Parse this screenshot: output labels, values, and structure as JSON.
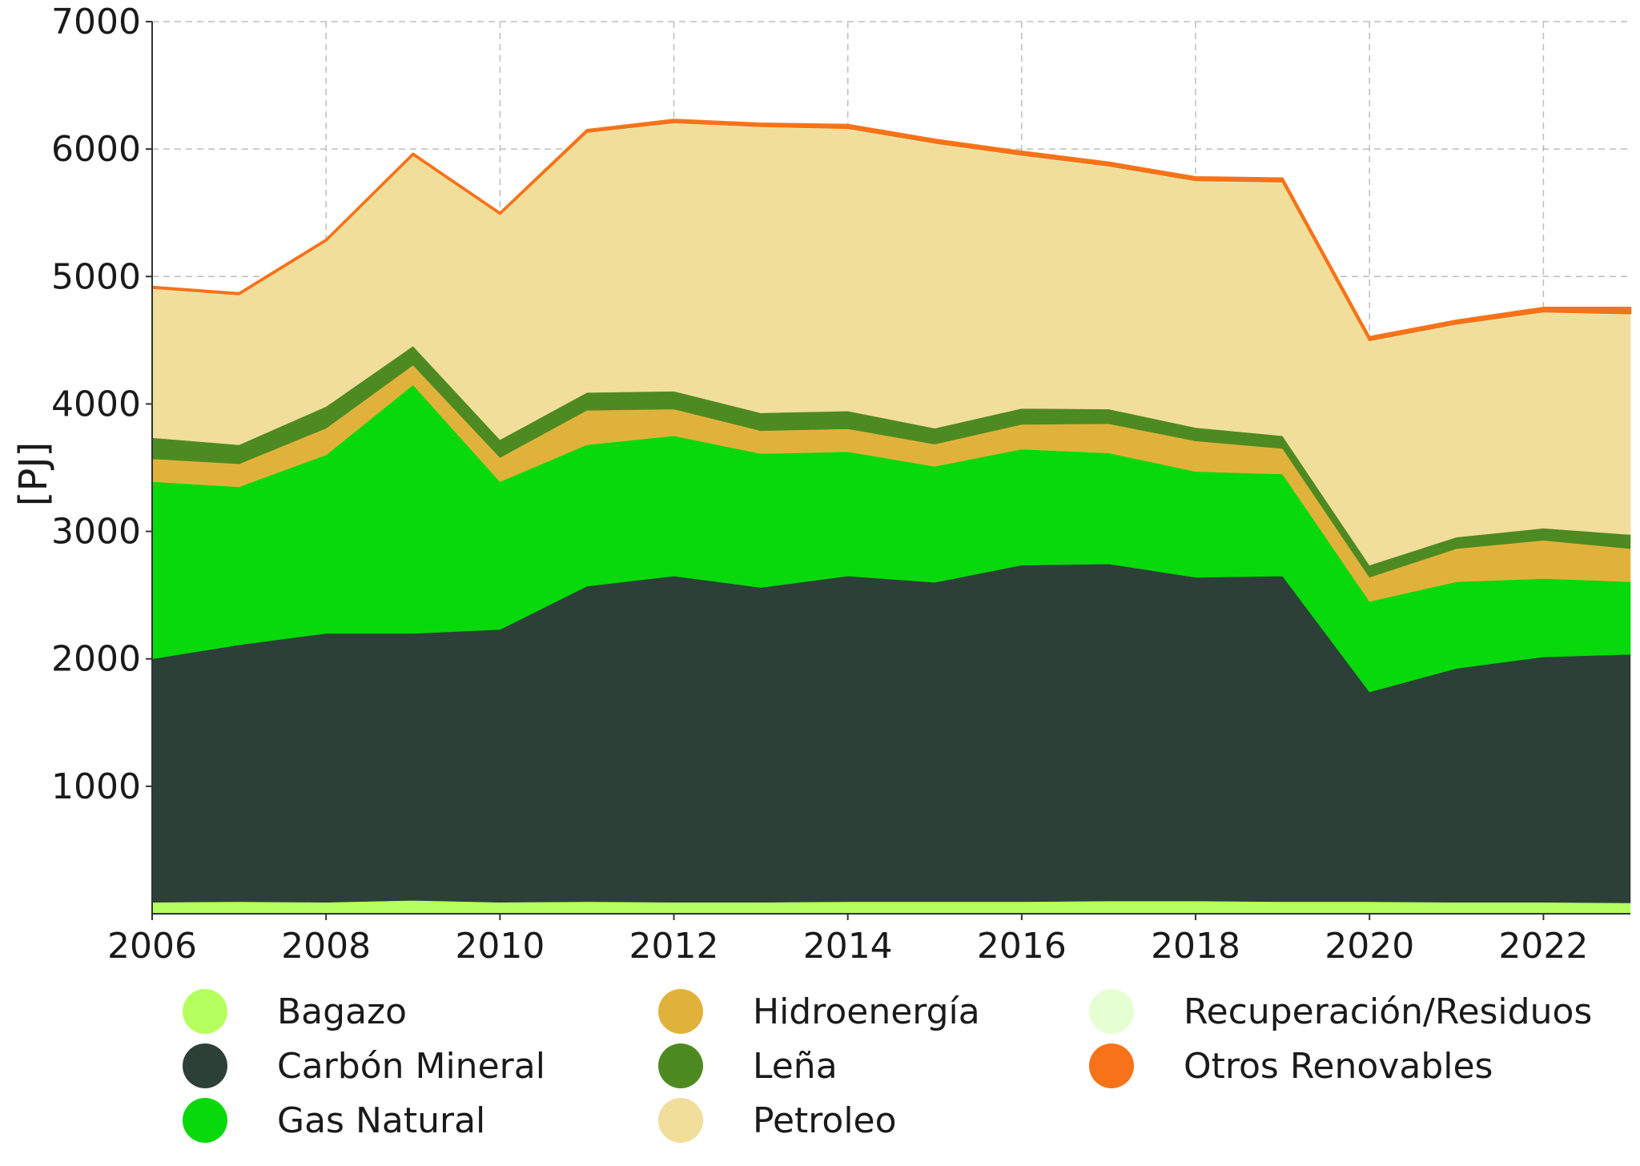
{
  "chart_data": {
    "type": "area",
    "stacked": true,
    "title": "",
    "xlabel": "",
    "ylabel": "[PJ]",
    "xlim": [
      2006,
      2023
    ],
    "ylim": [
      0,
      7000
    ],
    "x_ticks": [
      "2006",
      "2008",
      "2010",
      "2012",
      "2014",
      "2016",
      "2018",
      "2020",
      "2022"
    ],
    "y_ticks": [
      "1000",
      "2000",
      "3000",
      "4000",
      "5000",
      "6000",
      "7000"
    ],
    "grid": true,
    "legend_position": "bottom",
    "x": [
      2006,
      2007,
      2008,
      2009,
      2010,
      2011,
      2012,
      2013,
      2014,
      2015,
      2016,
      2017,
      2018,
      2019,
      2020,
      2021,
      2022,
      2023
    ],
    "series": [
      {
        "name": "Bagazo",
        "color": "#b5ff5e",
        "values": [
          90,
          95,
          90,
          105,
          90,
          95,
          90,
          90,
          95,
          95,
          95,
          100,
          100,
          95,
          95,
          90,
          90,
          85
        ]
      },
      {
        "name": "Carbón Mineral",
        "color": "#2c4037",
        "values": [
          1910,
          2015,
          2110,
          2095,
          2140,
          2475,
          2560,
          2470,
          2555,
          2505,
          2640,
          2645,
          2540,
          2555,
          1645,
          1835,
          1925,
          1950
        ]
      },
      {
        "name": "Gas Natural",
        "color": "#07d90b",
        "values": [
          1390,
          1240,
          1400,
          1950,
          1160,
          1110,
          1100,
          1050,
          975,
          910,
          910,
          870,
          830,
          800,
          710,
          680,
          615,
          570
        ]
      },
      {
        "name": "Hidroenergía",
        "color": "#e1b23b",
        "values": [
          180,
          180,
          210,
          155,
          190,
          270,
          210,
          180,
          180,
          175,
          195,
          230,
          240,
          200,
          190,
          260,
          300,
          260
        ]
      },
      {
        "name": "Leña",
        "color": "#4e8a22",
        "values": [
          165,
          150,
          170,
          150,
          140,
          140,
          140,
          140,
          140,
          125,
          125,
          115,
          105,
          100,
          95,
          90,
          95,
          110
        ]
      },
      {
        "name": "Petroleo",
        "color": "#f0de9a",
        "values": [
          1165,
          1170,
          1290,
          1490,
          1760,
          2035,
          2100,
          2240,
          2210,
          2230,
          1980,
          1900,
          1930,
          1985,
          1755,
          1665,
          1690,
          1725
        ]
      },
      {
        "name": "Recuperación/Residuos",
        "color": "#e6ffd2",
        "values": [
          10,
          10,
          10,
          10,
          10,
          10,
          10,
          10,
          10,
          10,
          10,
          10,
          10,
          10,
          10,
          10,
          10,
          10
        ]
      },
      {
        "name": "Otros Renovables",
        "color": "#f87219",
        "values": [
          10,
          10,
          10,
          10,
          10,
          15,
          20,
          20,
          25,
          25,
          25,
          25,
          25,
          25,
          25,
          25,
          30,
          45
        ]
      }
    ]
  }
}
